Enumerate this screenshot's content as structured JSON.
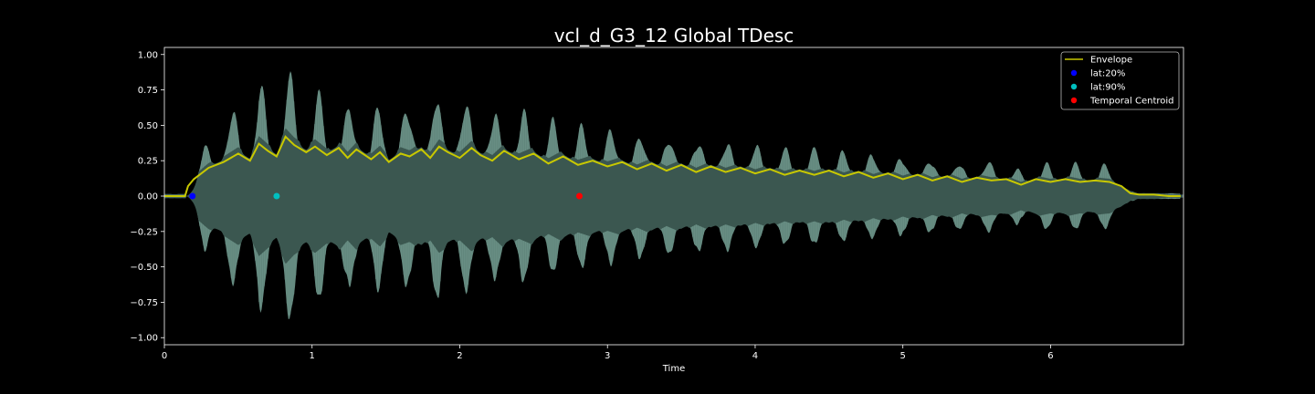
{
  "chart_data": {
    "type": "line",
    "title": "vcl_d_G3_12 Global TDesc",
    "xlabel": "Time",
    "ylabel": "",
    "xlim": [
      0,
      6.9
    ],
    "ylim": [
      -1.05,
      1.05
    ],
    "xticks": [
      0,
      1,
      2,
      3,
      4,
      5,
      6
    ],
    "xtick_labels": [
      "0",
      "1",
      "2",
      "3",
      "4",
      "5",
      "6"
    ],
    "yticks": [
      1.0,
      0.75,
      0.5,
      0.25,
      0.0,
      -0.25,
      -0.5,
      -0.75,
      -1.0
    ],
    "ytick_labels": [
      "1.00",
      "0.75",
      "0.50",
      "0.25",
      "0.00",
      "−0.25",
      "−0.50",
      "−0.75",
      "−1.00"
    ],
    "grid": false,
    "legend_position": "top-right",
    "colors": {
      "background": "#000000",
      "waveform_fill": "#3b5750",
      "waveform_peaks": "#6b958a",
      "envelope": "#c8c800",
      "lat20": "#0000ff",
      "lat90": "#00bfbf",
      "temporal_centroid": "#ff0000",
      "text": "#ffffff"
    },
    "waveform": {
      "name": "waveform",
      "attack_start": 0.15,
      "release_start": 6.5,
      "release_end": 6.88,
      "vibrato_period": 0.197,
      "vibrato_phase": 0.46
    },
    "series": [
      {
        "name": "Envelope",
        "kind": "line",
        "color": "#c8c800",
        "x": [
          0.0,
          0.14,
          0.16,
          0.2,
          0.3,
          0.4,
          0.5,
          0.58,
          0.64,
          0.7,
          0.76,
          0.82,
          0.88,
          0.96,
          1.02,
          1.1,
          1.18,
          1.24,
          1.3,
          1.4,
          1.46,
          1.52,
          1.6,
          1.66,
          1.74,
          1.8,
          1.86,
          1.92,
          2.0,
          2.08,
          2.14,
          2.22,
          2.3,
          2.4,
          2.5,
          2.6,
          2.7,
          2.8,
          2.9,
          3.0,
          3.1,
          3.2,
          3.3,
          3.4,
          3.5,
          3.6,
          3.7,
          3.8,
          3.9,
          4.0,
          4.1,
          4.2,
          4.3,
          4.4,
          4.5,
          4.6,
          4.7,
          4.8,
          4.9,
          5.0,
          5.1,
          5.2,
          5.3,
          5.4,
          5.5,
          5.6,
          5.7,
          5.8,
          5.9,
          6.0,
          6.1,
          6.2,
          6.3,
          6.4,
          6.48,
          6.54,
          6.6,
          6.7,
          6.8,
          6.88
        ],
        "y": [
          0.0,
          0.0,
          0.07,
          0.12,
          0.2,
          0.24,
          0.3,
          0.25,
          0.37,
          0.32,
          0.28,
          0.42,
          0.36,
          0.31,
          0.35,
          0.29,
          0.34,
          0.27,
          0.33,
          0.26,
          0.31,
          0.24,
          0.3,
          0.28,
          0.33,
          0.27,
          0.35,
          0.31,
          0.27,
          0.34,
          0.29,
          0.25,
          0.32,
          0.26,
          0.3,
          0.23,
          0.28,
          0.22,
          0.25,
          0.21,
          0.24,
          0.19,
          0.23,
          0.18,
          0.22,
          0.17,
          0.21,
          0.17,
          0.2,
          0.16,
          0.19,
          0.15,
          0.18,
          0.15,
          0.18,
          0.14,
          0.17,
          0.13,
          0.16,
          0.12,
          0.15,
          0.11,
          0.14,
          0.1,
          0.13,
          0.11,
          0.12,
          0.08,
          0.12,
          0.1,
          0.12,
          0.1,
          0.11,
          0.1,
          0.07,
          0.02,
          0.01,
          0.01,
          0.0,
          0.0
        ]
      },
      {
        "name": "lat:20%",
        "kind": "point",
        "color": "#0000ff",
        "x": [
          0.19
        ],
        "y": [
          0.0
        ]
      },
      {
        "name": "lat:90%",
        "kind": "point",
        "color": "#00bfbf",
        "x": [
          0.76
        ],
        "y": [
          0.0
        ]
      },
      {
        "name": "Temporal Centroid",
        "kind": "point",
        "color": "#ff0000",
        "x": [
          2.81
        ],
        "y": [
          0.0
        ]
      }
    ],
    "legend": [
      {
        "label": "Envelope",
        "marker": "line",
        "color": "#c8c800"
      },
      {
        "label": "lat:20%",
        "marker": "dot",
        "color": "#0000ff"
      },
      {
        "label": "lat:90%",
        "marker": "dot",
        "color": "#00bfbf"
      },
      {
        "label": "Temporal Centroid",
        "marker": "dot",
        "color": "#ff0000"
      }
    ]
  }
}
